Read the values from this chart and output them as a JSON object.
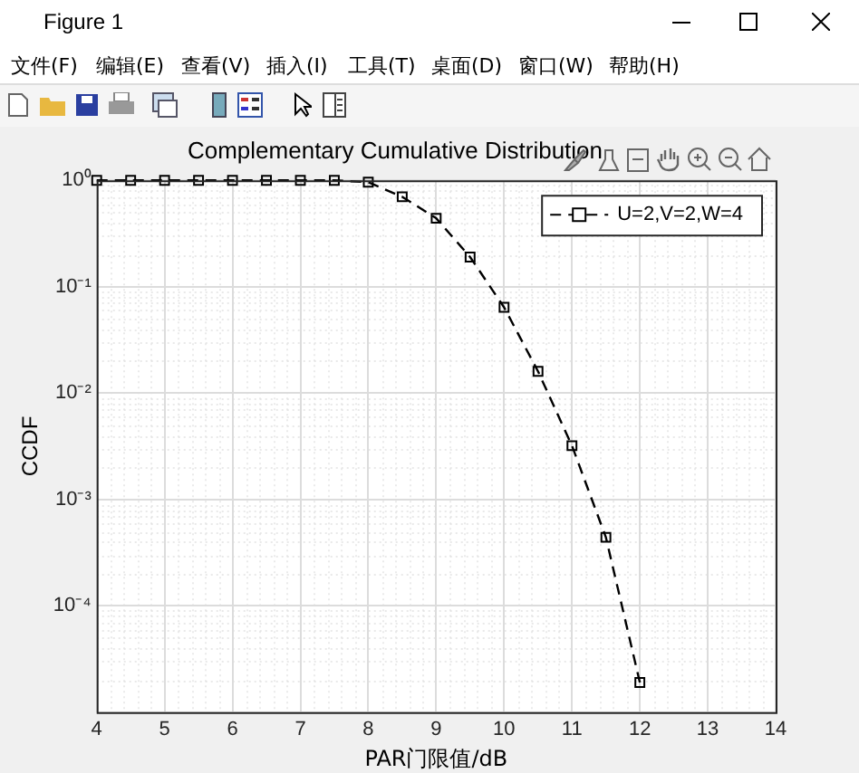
{
  "chart_data": {
    "type": "line",
    "title": "Complementary Cumulative Distribution",
    "xlabel": "PAR门限值/dB",
    "ylabel": "CCDF",
    "annotations": [
      "Figure 1",
      "文件(F)",
      "编辑(E)",
      "查看(V)",
      "插入(I)",
      "工具(T)",
      "桌面(D)",
      "窗口(W)",
      "帮助(H)"
    ],
    "x": [
      4,
      4.5,
      5,
      5.5,
      6,
      6.5,
      7,
      7.5,
      8,
      8.5,
      9,
      9.5,
      10,
      10.5,
      11,
      11.5,
      12
    ],
    "series": [
      {
        "name": "U=2,V=2,W=4",
        "color": "#000000",
        "values": [
          1,
          1,
          1,
          1,
          1,
          1,
          1,
          1,
          0.96,
          0.7,
          0.44,
          0.19,
          0.064,
          0.016,
          0.0032,
          0.00044,
          1.9e-05
        ]
      }
    ],
    "xlim": [
      4,
      14
    ],
    "xticks": [
      4,
      5,
      6,
      7,
      8,
      9,
      10,
      11,
      12,
      13,
      14
    ],
    "ylim": [
      1e-05,
      1
    ],
    "yticks": [
      {
        "value": 1e-05,
        "label": null
      },
      {
        "value": 0.0001,
        "label": "10⁻⁴"
      },
      {
        "value": 0.001,
        "label": "10⁻³"
      },
      {
        "value": 0.01,
        "label": "10⁻²"
      },
      {
        "value": 0.1,
        "label": "10⁻¹"
      },
      {
        "value": 1,
        "label": "10⁰"
      }
    ],
    "log": "y",
    "grid": true,
    "legend": "top right",
    "marker": "square",
    "line_style": "dashed"
  }
}
